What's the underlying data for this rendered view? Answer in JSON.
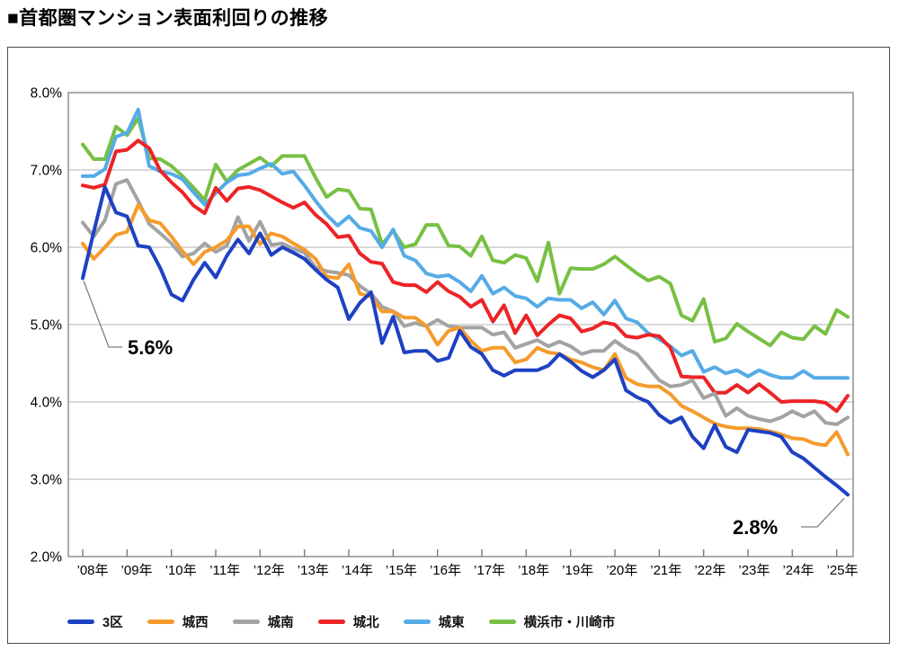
{
  "title": "■首都圏マンション表面利回りの推移",
  "chart_data": {
    "type": "line",
    "title": "首都圏マンション表面利回りの推移",
    "x_axis": {
      "unit": "year",
      "tick_labels": [
        "’08年",
        "’09年",
        "’10年",
        "’11年",
        "’12年",
        "’13年",
        "’14年",
        "’15年",
        "’16年",
        "’17年",
        "’18年",
        "’19年",
        "’20年",
        "’21年",
        "’22年",
        "’23年",
        "’24年",
        "’25年"
      ],
      "points_per_year": 4,
      "total_points": 70
    },
    "y_axis": {
      "min": 2.0,
      "max": 8.0,
      "tick_step": 1.0,
      "tick_labels": [
        "8.0%",
        "7.0%",
        "6.0%",
        "5.0%",
        "4.0%",
        "3.0%",
        "2.0%"
      ],
      "unit": "%",
      "grid": true
    },
    "legend_position": "bottom",
    "series": [
      {
        "name": "3区",
        "color": "#1e41c4",
        "values": [
          5.6,
          6.2,
          6.78,
          6.45,
          6.4,
          6.02,
          6.0,
          5.73,
          5.39,
          5.31,
          5.58,
          5.8,
          5.61,
          5.89,
          6.1,
          5.92,
          6.18,
          5.9,
          6.0,
          5.93,
          5.85,
          5.71,
          5.58,
          5.48,
          5.07,
          5.28,
          5.42,
          4.76,
          5.1,
          4.64,
          4.66,
          4.66,
          4.53,
          4.57,
          4.92,
          4.71,
          4.62,
          4.41,
          4.34,
          4.41,
          4.41,
          4.41,
          4.47,
          4.62,
          4.52,
          4.4,
          4.32,
          4.41,
          4.55,
          4.15,
          4.06,
          4.0,
          3.83,
          3.73,
          3.8,
          3.55,
          3.4,
          3.7,
          3.42,
          3.35,
          3.64,
          3.62,
          3.6,
          3.55,
          3.35,
          3.27,
          3.15,
          3.03,
          2.92,
          2.8
        ]
      },
      {
        "name": "城西",
        "color": "#f59b2b",
        "values": [
          6.05,
          5.85,
          6.0,
          6.16,
          6.2,
          6.55,
          6.35,
          6.31,
          6.14,
          5.95,
          5.78,
          5.94,
          6.0,
          6.09,
          6.27,
          6.27,
          6.04,
          6.18,
          6.14,
          6.05,
          5.97,
          5.85,
          5.62,
          5.6,
          5.78,
          5.4,
          5.36,
          5.17,
          5.17,
          5.09,
          5.09,
          4.98,
          4.74,
          4.92,
          4.96,
          4.79,
          4.66,
          4.7,
          4.7,
          4.51,
          4.55,
          4.7,
          4.64,
          4.62,
          4.55,
          4.51,
          4.45,
          4.41,
          4.62,
          4.31,
          4.23,
          4.2,
          4.2,
          4.1,
          3.95,
          3.88,
          3.8,
          3.72,
          3.68,
          3.66,
          3.66,
          3.65,
          3.62,
          3.58,
          3.53,
          3.52,
          3.46,
          3.44,
          3.61,
          3.32
        ]
      },
      {
        "name": "城南",
        "color": "#a3a3a3",
        "values": [
          6.32,
          6.14,
          6.35,
          6.82,
          6.87,
          6.6,
          6.3,
          6.18,
          6.05,
          5.88,
          5.92,
          6.05,
          5.94,
          6.02,
          6.39,
          6.08,
          6.33,
          6.03,
          6.05,
          5.98,
          5.93,
          5.74,
          5.69,
          5.67,
          5.64,
          5.5,
          5.4,
          5.23,
          5.17,
          4.98,
          5.02,
          4.98,
          5.06,
          4.98,
          4.96,
          4.96,
          4.96,
          4.87,
          4.9,
          4.7,
          4.75,
          4.8,
          4.72,
          4.78,
          4.72,
          4.62,
          4.66,
          4.66,
          4.79,
          4.69,
          4.62,
          4.45,
          4.28,
          4.2,
          4.22,
          4.28,
          4.05,
          4.11,
          3.82,
          3.92,
          3.82,
          3.78,
          3.75,
          3.8,
          3.88,
          3.81,
          3.88,
          3.73,
          3.71,
          3.8
        ]
      },
      {
        "name": "城北",
        "color": "#ec2426",
        "values": [
          6.8,
          6.77,
          6.81,
          7.24,
          7.26,
          7.38,
          7.28,
          6.99,
          6.84,
          6.71,
          6.54,
          6.44,
          6.77,
          6.6,
          6.76,
          6.78,
          6.74,
          6.66,
          6.58,
          6.51,
          6.58,
          6.42,
          6.3,
          6.13,
          6.15,
          5.92,
          5.81,
          5.79,
          5.55,
          5.51,
          5.51,
          5.42,
          5.55,
          5.43,
          5.36,
          5.23,
          5.32,
          5.04,
          5.25,
          4.89,
          5.12,
          4.86,
          5.0,
          5.12,
          5.08,
          4.91,
          4.95,
          5.03,
          5.0,
          4.85,
          4.83,
          4.87,
          4.85,
          4.7,
          4.33,
          4.32,
          4.32,
          4.12,
          4.12,
          4.22,
          4.12,
          4.23,
          4.12,
          4.0,
          4.01,
          4.01,
          4.01,
          3.99,
          3.88,
          4.08
        ]
      },
      {
        "name": "城東",
        "color": "#55abe6",
        "values": [
          6.92,
          6.92,
          7.01,
          7.43,
          7.48,
          7.78,
          7.05,
          6.98,
          6.95,
          6.88,
          6.71,
          6.55,
          6.7,
          6.84,
          6.93,
          6.95,
          7.02,
          7.08,
          6.95,
          6.98,
          6.8,
          6.6,
          6.42,
          6.28,
          6.4,
          6.25,
          6.21,
          6.0,
          6.23,
          5.89,
          5.83,
          5.66,
          5.62,
          5.64,
          5.55,
          5.43,
          5.63,
          5.4,
          5.48,
          5.37,
          5.34,
          5.23,
          5.34,
          5.32,
          5.32,
          5.21,
          5.29,
          5.13,
          5.31,
          5.08,
          5.03,
          4.89,
          4.81,
          4.72,
          4.6,
          4.66,
          4.39,
          4.45,
          4.37,
          4.41,
          4.33,
          4.41,
          4.35,
          4.31,
          4.31,
          4.4,
          4.31,
          4.31,
          4.31,
          4.31
        ]
      },
      {
        "name": "横浜市・川崎市",
        "color": "#77c043",
        "values": [
          7.33,
          7.14,
          7.14,
          7.56,
          7.45,
          7.67,
          7.15,
          7.14,
          7.05,
          6.92,
          6.77,
          6.61,
          7.07,
          6.85,
          7.0,
          7.08,
          7.16,
          7.05,
          7.18,
          7.18,
          7.18,
          6.9,
          6.65,
          6.75,
          6.73,
          6.5,
          6.49,
          6.04,
          6.21,
          6.0,
          6.04,
          6.29,
          6.29,
          6.02,
          6.01,
          5.89,
          6.14,
          5.83,
          5.8,
          5.9,
          5.86,
          5.56,
          6.06,
          5.4,
          5.73,
          5.72,
          5.72,
          5.78,
          5.88,
          5.77,
          5.66,
          5.57,
          5.62,
          5.53,
          5.12,
          5.05,
          5.33,
          4.78,
          4.82,
          5.01,
          4.91,
          4.82,
          4.73,
          4.9,
          4.83,
          4.81,
          4.98,
          4.88,
          5.19,
          5.1
        ]
      }
    ],
    "annotations": [
      {
        "text": "5.6%",
        "series": "3区",
        "point_index": 0,
        "value": 5.6
      },
      {
        "text": "2.8%",
        "series": "3区",
        "point_index": 69,
        "value": 2.8
      }
    ],
    "colors": {
      "grid": "#b3b3b3",
      "axis": "#808080",
      "annotation_leader": "#7f7f7f",
      "text": "#000000"
    }
  }
}
